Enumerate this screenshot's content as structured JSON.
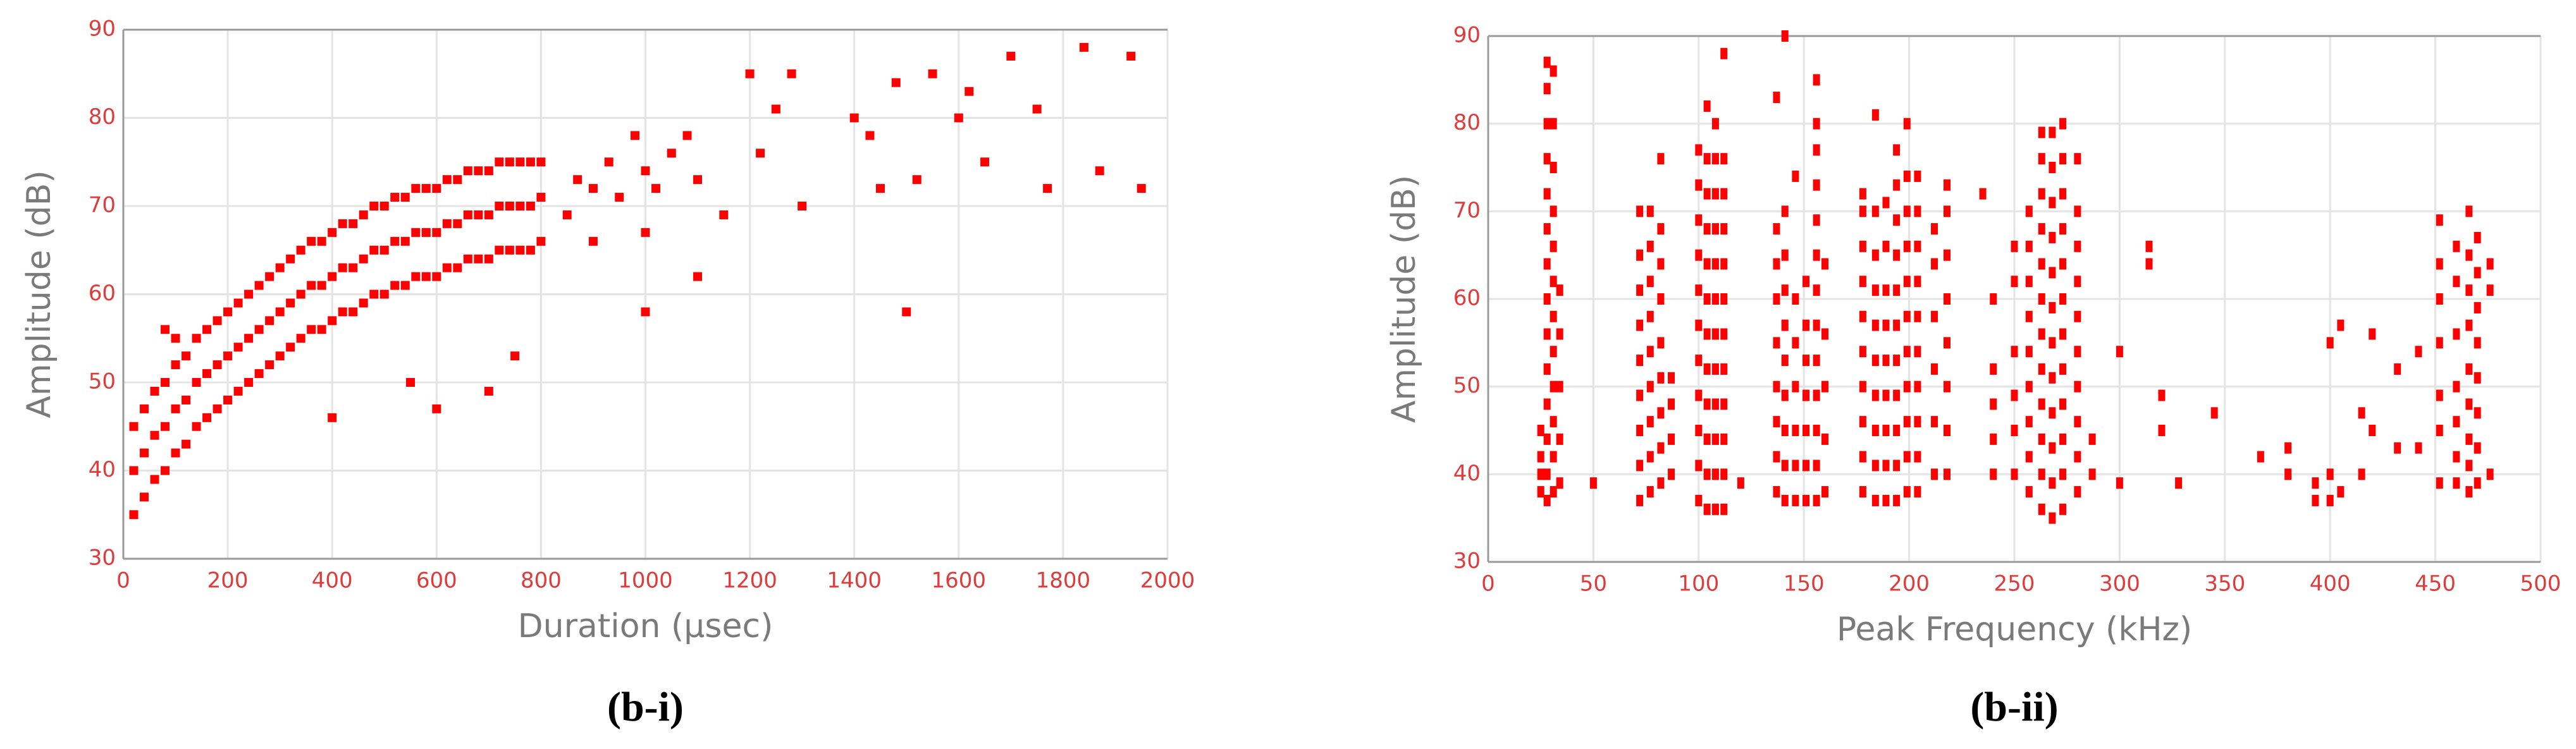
{
  "chart_data": [
    {
      "type": "scatter",
      "caption": "(b-i)",
      "xlabel": "Duration (μsec)",
      "ylabel": "Amplitude (dB)",
      "color": "#ff0000",
      "grid": true,
      "xlim": [
        0,
        2000
      ],
      "ylim": [
        30,
        90
      ],
      "xticks": [
        0,
        200,
        400,
        600,
        800,
        1000,
        1200,
        1400,
        1600,
        1800,
        2000
      ],
      "yticks": [
        30,
        40,
        50,
        60,
        70,
        80,
        90
      ],
      "x": [
        20,
        20,
        20,
        40,
        40,
        40,
        60,
        60,
        60,
        80,
        80,
        80,
        100,
        100,
        100,
        120,
        120,
        120,
        140,
        140,
        140,
        160,
        160,
        160,
        180,
        180,
        180,
        200,
        200,
        200,
        220,
        220,
        220,
        240,
        240,
        240,
        260,
        260,
        260,
        280,
        280,
        280,
        300,
        300,
        300,
        320,
        320,
        320,
        340,
        340,
        340,
        360,
        360,
        360,
        380,
        380,
        380,
        400,
        400,
        400,
        420,
        420,
        420,
        440,
        440,
        440,
        460,
        460,
        460,
        480,
        480,
        480,
        500,
        500,
        500,
        520,
        520,
        520,
        540,
        540,
        540,
        560,
        560,
        560,
        580,
        580,
        580,
        600,
        600,
        600,
        620,
        620,
        620,
        640,
        640,
        640,
        660,
        660,
        660,
        680,
        680,
        680,
        700,
        700,
        700,
        720,
        720,
        720,
        740,
        740,
        740,
        760,
        760,
        760,
        780,
        780,
        780,
        800,
        800,
        800,
        850,
        870,
        900,
        930,
        950,
        980,
        1000,
        1020,
        1050,
        1080,
        1100,
        1150,
        1200,
        1220,
        1250,
        1280,
        1300,
        1400,
        1430,
        1450,
        1480,
        1500,
        1520,
        1550,
        1600,
        1620,
        1650,
        1700,
        1750,
        1770,
        1840,
        1870,
        1930,
        1950,
        80,
        100,
        400,
        550,
        600,
        700,
        750,
        1000,
        1100,
        900,
        1000
      ],
      "values": [
        35,
        40,
        45,
        37,
        42,
        47,
        39,
        44,
        49,
        40,
        45,
        50,
        42,
        47,
        52,
        43,
        48,
        53,
        45,
        50,
        55,
        46,
        51,
        56,
        47,
        52,
        57,
        48,
        53,
        58,
        49,
        54,
        59,
        50,
        55,
        60,
        51,
        56,
        61,
        52,
        57,
        62,
        53,
        58,
        63,
        54,
        59,
        64,
        55,
        60,
        65,
        56,
        61,
        66,
        56,
        61,
        66,
        57,
        62,
        67,
        58,
        63,
        68,
        58,
        63,
        68,
        59,
        64,
        69,
        60,
        65,
        70,
        60,
        65,
        70,
        61,
        66,
        71,
        61,
        66,
        71,
        62,
        67,
        72,
        62,
        67,
        72,
        62,
        67,
        72,
        63,
        68,
        73,
        63,
        68,
        73,
        64,
        69,
        74,
        64,
        69,
        74,
        64,
        69,
        74,
        65,
        70,
        75,
        65,
        70,
        75,
        65,
        70,
        75,
        65,
        70,
        75,
        66,
        71,
        75,
        69,
        73,
        72,
        75,
        71,
        78,
        74,
        72,
        76,
        78,
        73,
        69,
        85,
        76,
        81,
        85,
        70,
        80,
        78,
        72,
        84,
        58,
        73,
        85,
        80,
        83,
        75,
        87,
        81,
        72,
        88,
        74,
        87,
        72,
        56,
        55,
        46,
        50,
        47,
        49,
        53,
        58,
        62,
        66,
        67
      ]
    },
    {
      "type": "scatter",
      "caption": "(b-ii)",
      "xlabel": "Peak Frequency (kHz)",
      "ylabel": "Amplitude (dB)",
      "color": "#ff0000",
      "grid": true,
      "xlim": [
        0,
        500
      ],
      "ylim": [
        30,
        90
      ],
      "xticks": [
        0,
        50,
        100,
        150,
        200,
        250,
        300,
        350,
        400,
        450,
        500
      ],
      "yticks": [
        30,
        40,
        50,
        60,
        70,
        80,
        90
      ],
      "x": [
        25,
        25,
        25,
        25,
        28,
        28,
        28,
        28,
        28,
        28,
        28,
        28,
        28,
        28,
        28,
        28,
        28,
        28,
        31,
        31,
        31,
        31,
        31,
        31,
        31,
        31,
        31,
        31,
        31,
        31,
        34,
        34,
        34,
        34,
        34,
        50,
        72,
        72,
        72,
        72,
        72,
        72,
        72,
        72,
        72,
        77,
        77,
        77,
        77,
        77,
        77,
        77,
        77,
        77,
        82,
        82,
        82,
        82,
        82,
        82,
        82,
        82,
        82,
        87,
        87,
        87,
        87,
        100,
        100,
        100,
        100,
        100,
        100,
        100,
        100,
        100,
        100,
        100,
        104,
        104,
        104,
        104,
        104,
        104,
        104,
        104,
        104,
        104,
        104,
        104,
        108,
        108,
        108,
        108,
        108,
        108,
        108,
        108,
        108,
        108,
        108,
        108,
        112,
        112,
        112,
        112,
        112,
        112,
        112,
        112,
        112,
        112,
        112,
        112,
        120,
        137,
        137,
        137,
        137,
        137,
        137,
        137,
        137,
        137,
        141,
        141,
        141,
        141,
        141,
        141,
        141,
        141,
        141,
        141,
        146,
        146,
        146,
        146,
        146,
        146,
        146,
        151,
        151,
        151,
        151,
        151,
        151,
        151,
        156,
        156,
        156,
        156,
        156,
        156,
        156,
        156,
        156,
        156,
        156,
        156,
        156,
        160,
        160,
        160,
        160,
        160,
        178,
        178,
        178,
        178,
        178,
        178,
        178,
        178,
        178,
        178,
        184,
        184,
        184,
        184,
        184,
        184,
        184,
        184,
        184,
        184,
        189,
        189,
        189,
        189,
        189,
        189,
        189,
        189,
        189,
        194,
        194,
        194,
        194,
        194,
        194,
        194,
        194,
        194,
        194,
        194,
        199,
        199,
        199,
        199,
        199,
        199,
        199,
        199,
        199,
        199,
        199,
        204,
        204,
        204,
        204,
        204,
        204,
        204,
        204,
        204,
        204,
        212,
        212,
        212,
        212,
        212,
        212,
        218,
        218,
        218,
        218,
        218,
        218,
        218,
        218,
        235,
        240,
        240,
        240,
        240,
        240,
        250,
        250,
        250,
        250,
        250,
        250,
        257,
        257,
        257,
        257,
        257,
        257,
        257,
        257,
        257,
        263,
        263,
        263,
        263,
        263,
        263,
        263,
        263,
        263,
        263,
        263,
        263,
        268,
        268,
        268,
        268,
        268,
        268,
        268,
        268,
        268,
        268,
        268,
        268,
        273,
        273,
        273,
        273,
        273,
        273,
        273,
        273,
        273,
        273,
        273,
        273,
        280,
        280,
        280,
        280,
        280,
        280,
        280,
        280,
        280,
        280,
        287,
        287,
        300,
        300,
        314,
        314,
        320,
        320,
        328,
        345,
        367,
        380,
        380,
        393,
        393,
        400,
        400,
        400,
        405,
        405,
        415,
        415,
        420,
        420,
        432,
        432,
        442,
        442,
        452,
        452,
        452,
        452,
        452,
        452,
        452,
        460,
        460,
        460,
        460,
        460,
        460,
        460,
        466,
        466,
        466,
        466,
        466,
        466,
        466,
        466,
        466,
        470,
        470,
        470,
        470,
        470,
        470,
        470,
        470,
        476,
        476,
        476
      ],
      "values": [
        38,
        40,
        42,
        45,
        37,
        40,
        44,
        48,
        52,
        56,
        60,
        64,
        68,
        72,
        76,
        80,
        84,
        87,
        38,
        42,
        46,
        50,
        54,
        58,
        62,
        66,
        70,
        75,
        80,
        86,
        39,
        44,
        50,
        56,
        61,
        39,
        37,
        41,
        45,
        49,
        53,
        57,
        61,
        65,
        70,
        38,
        42,
        46,
        50,
        54,
        58,
        62,
        66,
        70,
        39,
        43,
        47,
        51,
        55,
        60,
        64,
        68,
        76,
        40,
        44,
        48,
        51,
        37,
        41,
        45,
        49,
        53,
        57,
        61,
        65,
        69,
        73,
        77,
        36,
        40,
        44,
        48,
        52,
        56,
        60,
        64,
        68,
        72,
        76,
        82,
        36,
        40,
        44,
        48,
        52,
        56,
        60,
        64,
        68,
        72,
        76,
        80,
        36,
        40,
        44,
        48,
        52,
        56,
        60,
        64,
        68,
        72,
        76,
        88,
        39,
        38,
        42,
        46,
        50,
        55,
        60,
        64,
        68,
        83,
        37,
        41,
        45,
        49,
        53,
        57,
        61,
        65,
        70,
        90,
        37,
        41,
        45,
        50,
        55,
        60,
        74,
        37,
        41,
        45,
        49,
        53,
        57,
        62,
        37,
        41,
        45,
        49,
        53,
        57,
        61,
        65,
        69,
        73,
        77,
        80,
        85,
        38,
        44,
        50,
        56,
        64,
        38,
        42,
        46,
        50,
        54,
        58,
        62,
        66,
        70,
        72,
        37,
        41,
        45,
        49,
        53,
        57,
        61,
        65,
        70,
        81,
        37,
        41,
        45,
        49,
        53,
        57,
        61,
        66,
        71,
        37,
        41,
        45,
        49,
        53,
        57,
        61,
        65,
        69,
        73,
        77,
        38,
        42,
        46,
        50,
        54,
        58,
        62,
        66,
        70,
        74,
        80,
        38,
        42,
        46,
        50,
        54,
        58,
        62,
        66,
        70,
        74,
        40,
        46,
        52,
        58,
        64,
        68,
        40,
        45,
        50,
        55,
        60,
        65,
        70,
        73,
        72,
        40,
        44,
        48,
        52,
        60,
        40,
        45,
        49,
        54,
        62,
        66,
        38,
        42,
        46,
        50,
        54,
        58,
        62,
        66,
        70,
        36,
        40,
        44,
        48,
        52,
        56,
        60,
        64,
        68,
        72,
        76,
        79,
        35,
        39,
        43,
        47,
        51,
        55,
        59,
        63,
        67,
        71,
        75,
        79,
        36,
        40,
        44,
        48,
        52,
        56,
        60,
        64,
        68,
        72,
        76,
        80,
        38,
        42,
        46,
        50,
        54,
        58,
        62,
        66,
        70,
        76,
        40,
        44,
        39,
        54,
        64,
        66,
        45,
        49,
        39,
        47,
        42,
        40,
        43,
        37,
        39,
        37,
        40,
        55,
        38,
        57,
        40,
        47,
        45,
        56,
        43,
        52,
        43,
        54,
        39,
        45,
        49,
        55,
        60,
        64,
        69,
        39,
        42,
        46,
        50,
        56,
        62,
        66,
        38,
        41,
        44,
        48,
        52,
        57,
        61,
        65,
        70,
        39,
        43,
        47,
        51,
        55,
        59,
        63,
        67,
        40,
        61,
        64
      ]
    }
  ]
}
